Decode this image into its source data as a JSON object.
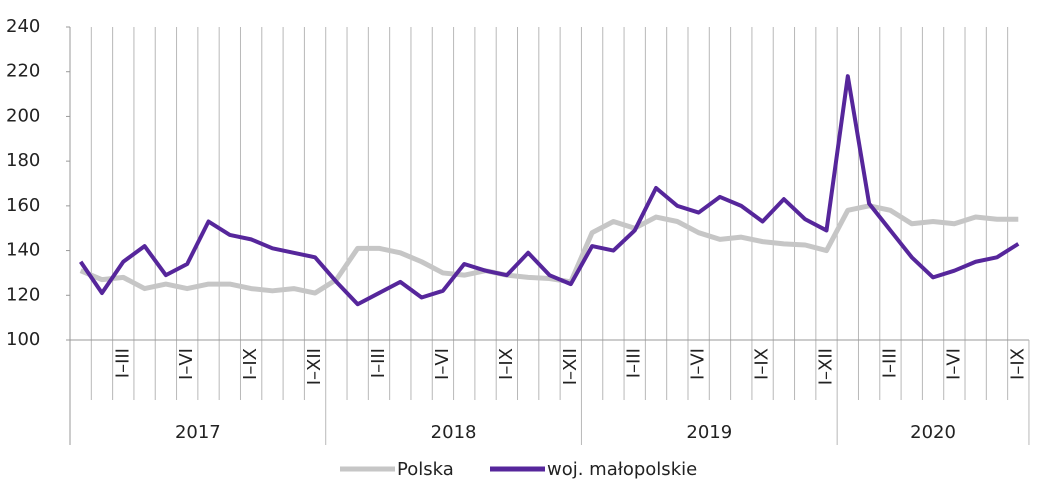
{
  "chart_data": {
    "type": "line",
    "categories": [
      null,
      null,
      "I–III",
      null,
      null,
      "I–VI",
      null,
      null,
      "I–IX",
      null,
      null,
      "I–XII",
      null,
      null,
      "I–III",
      null,
      null,
      "I–VI",
      null,
      null,
      "I–IX",
      null,
      null,
      "I–XII",
      null,
      null,
      "I–III",
      null,
      null,
      "I–VI",
      null,
      null,
      "I–IX",
      null,
      null,
      "I–XII",
      null,
      null,
      "I–III",
      null,
      null,
      "I–VI",
      null,
      null,
      "I–IX"
    ],
    "years": [
      "2017",
      "2018",
      "2019",
      "2020"
    ],
    "series": [
      {
        "name": "Polska",
        "color": "#c6c6c6",
        "values": [
          131,
          127,
          128,
          123,
          125,
          123,
          125,
          125,
          123,
          122,
          123,
          121,
          127,
          141,
          141,
          139,
          135,
          130,
          129,
          131,
          129,
          128,
          127.5,
          126,
          148,
          153,
          150,
          155,
          153,
          148,
          145,
          146,
          144,
          143,
          142.5,
          140,
          158,
          160,
          158,
          152,
          153,
          152,
          155,
          154,
          154
        ]
      },
      {
        "name": "woj. małopolskie",
        "color": "#56269b",
        "values": [
          135,
          121,
          135,
          142,
          129,
          134,
          153,
          147,
          145,
          141,
          139,
          137,
          126,
          116,
          121,
          126,
          119,
          122,
          134,
          131,
          129,
          139,
          129,
          125,
          142,
          140,
          149,
          168,
          160,
          157,
          164,
          160,
          153,
          163,
          154,
          149,
          218,
          161,
          149,
          137,
          128,
          131,
          135,
          137,
          143
        ]
      }
    ],
    "ylim": [
      100,
      240
    ],
    "yticks": [
      100,
      120,
      140,
      160,
      180,
      200,
      220,
      240
    ]
  }
}
